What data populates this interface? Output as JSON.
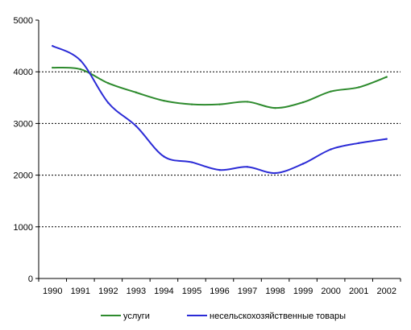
{
  "chart_data": {
    "type": "line",
    "title": "",
    "xlabel": "",
    "ylabel": "",
    "x": [
      "1990",
      "1991",
      "1992",
      "1993",
      "1994",
      "1995",
      "1996",
      "1997",
      "1998",
      "1999",
      "2000",
      "2001",
      "2002"
    ],
    "ylim": [
      0,
      5000
    ],
    "yticks": [
      "0",
      "1000",
      "2000",
      "3000",
      "4000",
      "5000"
    ],
    "grid": "horizontal dashed at 2000, 3000, 4000",
    "legend_position": "bottom",
    "series": [
      {
        "name": "услуги",
        "color": "#2e8b2e",
        "values": [
          4080,
          4050,
          3780,
          3600,
          3440,
          3370,
          3370,
          3420,
          3300,
          3410,
          3620,
          3700,
          3900
        ]
      },
      {
        "name": "несельскохозяйственные товары",
        "color": "#2b2bd6",
        "values": [
          4500,
          4220,
          3400,
          2950,
          2360,
          2250,
          2100,
          2160,
          2040,
          2220,
          2500,
          2620,
          2700
        ]
      }
    ]
  }
}
